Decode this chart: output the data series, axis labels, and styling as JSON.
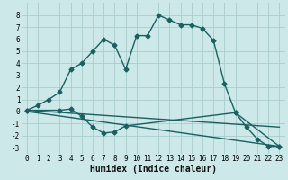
{
  "title": "",
  "xlabel": "Humidex (Indice chaleur)",
  "ylabel": "",
  "background_color": "#cce8e8",
  "grid_color": "#aacccc",
  "line_color": "#1a6060",
  "xlim": [
    -0.5,
    23.5
  ],
  "ylim": [
    -3.5,
    9.0
  ],
  "xticks": [
    0,
    1,
    2,
    3,
    4,
    5,
    6,
    7,
    8,
    9,
    10,
    11,
    12,
    13,
    14,
    15,
    16,
    17,
    18,
    19,
    20,
    21,
    22,
    23
  ],
  "yticks": [
    -3,
    -2,
    -1,
    0,
    1,
    2,
    3,
    4,
    5,
    6,
    7,
    8
  ],
  "curve1_x": [
    0,
    1,
    2,
    3,
    4,
    5,
    6,
    7,
    8,
    9,
    10,
    11,
    12,
    13,
    14,
    15,
    16,
    17,
    18,
    19,
    20,
    21,
    22,
    23
  ],
  "curve1_y": [
    0.1,
    0.5,
    1.0,
    1.6,
    3.5,
    4.0,
    5.0,
    6.0,
    5.5,
    3.5,
    6.3,
    6.3,
    8.0,
    7.6,
    7.2,
    7.2,
    6.9,
    5.9,
    2.3,
    -0.1,
    -1.3,
    -2.3,
    -2.9,
    -2.9
  ],
  "curve2_x": [
    0,
    3,
    4,
    5,
    6,
    7,
    8,
    9,
    19,
    23
  ],
  "curve2_y": [
    0.1,
    0.1,
    0.2,
    -0.4,
    -1.3,
    -1.8,
    -1.7,
    -1.2,
    -0.1,
    -2.9
  ],
  "curve3_x": [
    0,
    23
  ],
  "curve3_y": [
    0.1,
    -1.3
  ],
  "curve4_x": [
    0,
    23
  ],
  "curve4_y": [
    0.0,
    -2.9
  ],
  "marker": "D",
  "markersize": 2.5,
  "linewidth": 1.0,
  "xlabel_fontsize": 7,
  "tick_fontsize": 5.5
}
